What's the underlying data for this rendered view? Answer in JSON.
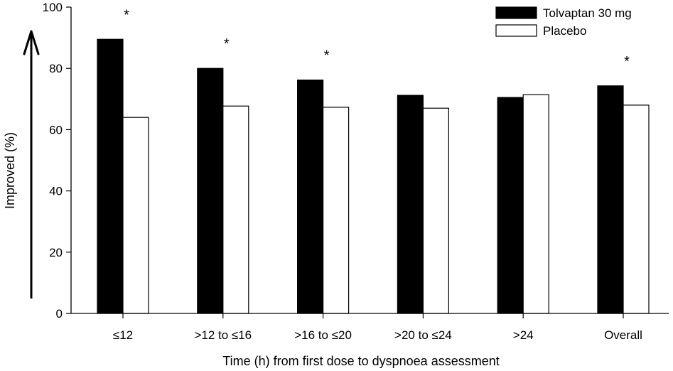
{
  "chart_data": {
    "type": "bar",
    "xlabel": "Time (h) from first dose to dyspnoea assessment",
    "ylabel": "Improved (%)",
    "ylim": [
      0,
      100
    ],
    "yticks": [
      0,
      20,
      40,
      60,
      80,
      100
    ],
    "categories": [
      "≤12",
      ">12 to ≤16",
      ">16 to ≤20",
      ">20 to ≤24",
      ">24",
      "Overall"
    ],
    "series": [
      {
        "name": "Tolvaptan 30 mg",
        "color": "#000000",
        "values": [
          89.5,
          80.0,
          76.2,
          71.2,
          70.5,
          74.3
        ]
      },
      {
        "name": "Placebo",
        "color": "#ffffff",
        "values": [
          64.0,
          67.7,
          67.3,
          67.0,
          71.4,
          68.0
        ]
      }
    ],
    "significance_marker": "*",
    "significant_categories": [
      "≤12",
      ">12 to ≤16",
      ">16 to ≤20",
      "Overall"
    ],
    "legend_position": "top-right",
    "grid": false,
    "axis_arrow": "up"
  }
}
